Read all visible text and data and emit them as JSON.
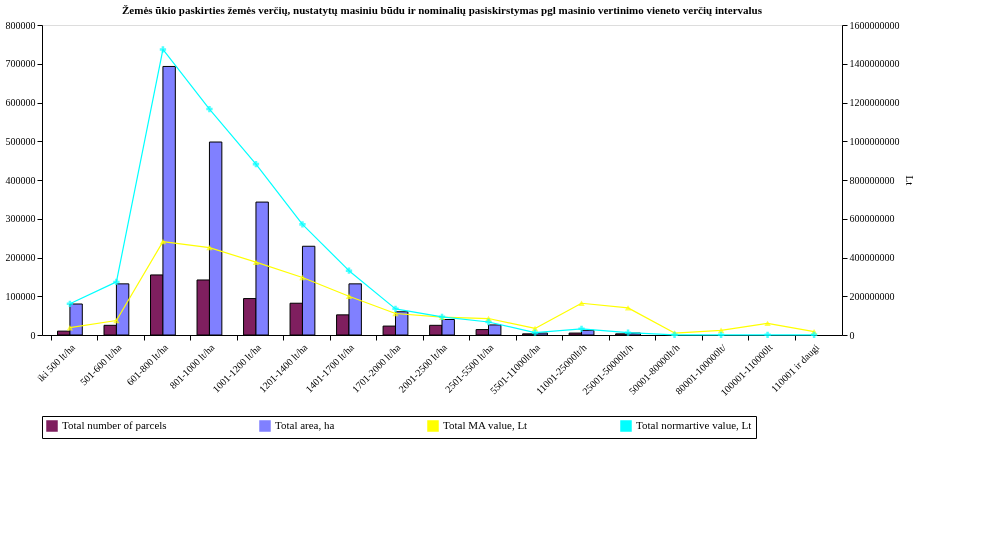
{
  "chart_data": {
    "type": "bar",
    "title": "Žemės ūkio paskirties žemės verčių, nustatytų masiniu būdu  ir nominalių pasiskirstymas pgl masinio vertinimo vieneto verčių intervalus",
    "categories": [
      "iki 500 lt/ha",
      "501-600 lt/ha",
      "601-800 lt/ha",
      "801-1000 lt/ha",
      "1001-1200 lt/ha",
      "1201-1400 lt/ha",
      "1401-1700 lt/ha",
      "1701-2000 lt/ha",
      "2001-2500 lt/ha",
      "2501-5500 lt/ha",
      "5501-11000lt/ha",
      "11001-25000lt/h",
      "25001-50000lt/h",
      "50001-80000lt/h",
      "80001-100000lt/",
      "100001-110000lt",
      "110001 ir daugi"
    ],
    "series": [
      {
        "name": "Total number of parcels",
        "color": "#7f1f5f",
        "values": [
          10000,
          25000,
          155000,
          142000,
          94000,
          82000,
          52000,
          23000,
          25000,
          14000,
          3000,
          5000,
          3000,
          0,
          0,
          0,
          0
        ]
      },
      {
        "name": "Total area, ha",
        "color": "#8080ff",
        "values": [
          80000,
          132000,
          693000,
          498000,
          343000,
          229000,
          132000,
          60000,
          40000,
          26000,
          5000,
          12000,
          5000,
          0,
          0,
          0,
          0
        ]
      },
      {
        "name": "Total MA value, Lt",
        "color": "#ffff00",
        "type": "line",
        "axis": "y2",
        "marker": "triangle",
        "values": [
          38000000,
          75000000,
          482000000,
          451000000,
          376000000,
          297000000,
          200000000,
          111000000,
          92000000,
          85000000,
          34000000,
          164000000,
          140000000,
          10000000,
          24000000,
          60000000,
          17000000
        ]
      },
      {
        "name": "Total normartive value, Lt",
        "color": "#00ffff",
        "type": "line",
        "axis": "y2",
        "marker": "cross",
        "values": [
          161000000,
          274000000,
          1474000000,
          1166000000,
          882000000,
          571000000,
          332000000,
          135000000,
          94000000,
          67000000,
          12000000,
          32000000,
          12000000,
          1000000,
          1000000,
          1000000,
          1000000
        ]
      }
    ],
    "ylim": [
      0,
      800000
    ],
    "yticks": [
      0,
      100000,
      200000,
      300000,
      400000,
      500000,
      600000,
      700000,
      800000
    ],
    "y2label": "Lt",
    "y2lim": [
      0,
      1600000000
    ],
    "y2ticks": [
      0,
      200000000,
      400000000,
      600000000,
      800000000,
      1000000000,
      1200000000,
      1400000000,
      1600000000
    ],
    "grid": false,
    "legend": "bottom"
  }
}
